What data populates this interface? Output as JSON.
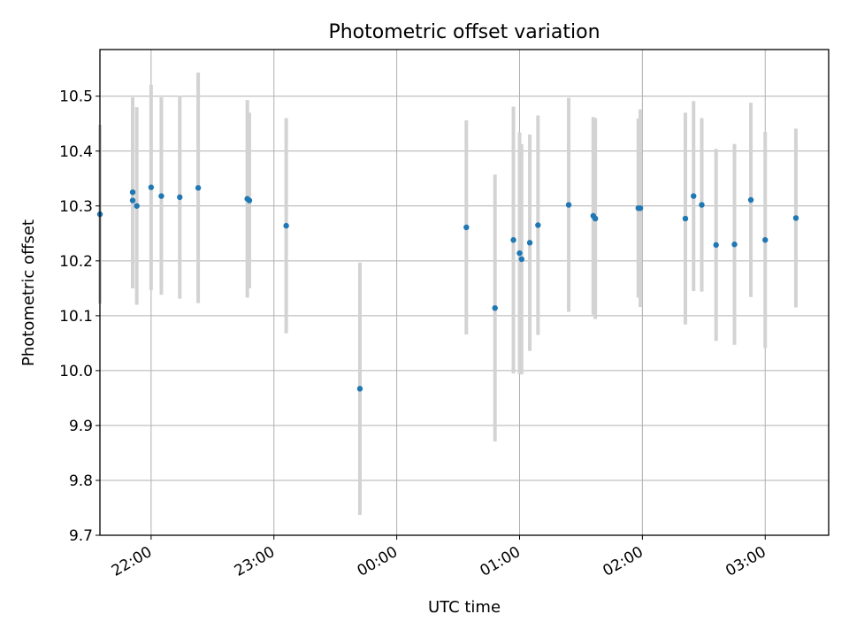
{
  "chart_data": {
    "type": "scatter",
    "title": "Photometric offset variation",
    "xlabel": "UTC time",
    "ylabel": "Photometric offset",
    "grid": true,
    "xlim": [
      "21:35",
      "03:31"
    ],
    "ylim": [
      9.7,
      10.585
    ],
    "xticks": [
      "22:00",
      "23:00",
      "00:00",
      "01:00",
      "02:00",
      "03:00"
    ],
    "yticks": [
      "9.7",
      "9.8",
      "9.9",
      "10.0",
      "10.1",
      "10.2",
      "10.3",
      "10.4",
      "10.5"
    ],
    "colors": {
      "marker": "#1f77b4",
      "errorbar": "#d3d3d3",
      "grid": "#b0b0b0"
    },
    "points": [
      {
        "x": "21:35",
        "y": 10.285,
        "err": 0.163
      },
      {
        "x": "21:51",
        "y": 10.325,
        "err": 0.173
      },
      {
        "x": "21:51",
        "y": 10.31,
        "err": 0.16
      },
      {
        "x": "21:53",
        "y": 10.3,
        "err": 0.18
      },
      {
        "x": "22:00",
        "y": 10.334,
        "err": 0.187
      },
      {
        "x": "22:05",
        "y": 10.318,
        "err": 0.18
      },
      {
        "x": "22:14",
        "y": 10.316,
        "err": 0.185
      },
      {
        "x": "22:23",
        "y": 10.333,
        "err": 0.21
      },
      {
        "x": "22:47",
        "y": 10.313,
        "err": 0.18
      },
      {
        "x": "22:48",
        "y": 10.31,
        "err": 0.16
      },
      {
        "x": "23:06",
        "y": 10.264,
        "err": 0.196
      },
      {
        "x": "23:42",
        "y": 9.967,
        "err": 0.23
      },
      {
        "x": "00:34",
        "y": 10.261,
        "err": 0.195
      },
      {
        "x": "00:48",
        "y": 10.114,
        "err": 0.243
      },
      {
        "x": "00:57",
        "y": 10.238,
        "err": 0.243
      },
      {
        "x": "01:00",
        "y": 10.214,
        "err": 0.22
      },
      {
        "x": "01:01",
        "y": 10.203,
        "err": 0.21
      },
      {
        "x": "01:05",
        "y": 10.233,
        "err": 0.197
      },
      {
        "x": "01:09",
        "y": 10.265,
        "err": 0.2
      },
      {
        "x": "01:24",
        "y": 10.302,
        "err": 0.195
      },
      {
        "x": "01:36",
        "y": 10.282,
        "err": 0.18
      },
      {
        "x": "01:37",
        "y": 10.277,
        "err": 0.183
      },
      {
        "x": "01:58",
        "y": 10.296,
        "err": 0.163
      },
      {
        "x": "01:59",
        "y": 10.296,
        "err": 0.18
      },
      {
        "x": "02:21",
        "y": 10.277,
        "err": 0.193
      },
      {
        "x": "02:25",
        "y": 10.318,
        "err": 0.173
      },
      {
        "x": "02:29",
        "y": 10.302,
        "err": 0.158
      },
      {
        "x": "02:36",
        "y": 10.229,
        "err": 0.175
      },
      {
        "x": "02:45",
        "y": 10.23,
        "err": 0.183
      },
      {
        "x": "02:53",
        "y": 10.311,
        "err": 0.177
      },
      {
        "x": "03:00",
        "y": 10.238,
        "err": 0.197
      },
      {
        "x": "03:15",
        "y": 10.278,
        "err": 0.163
      }
    ]
  }
}
